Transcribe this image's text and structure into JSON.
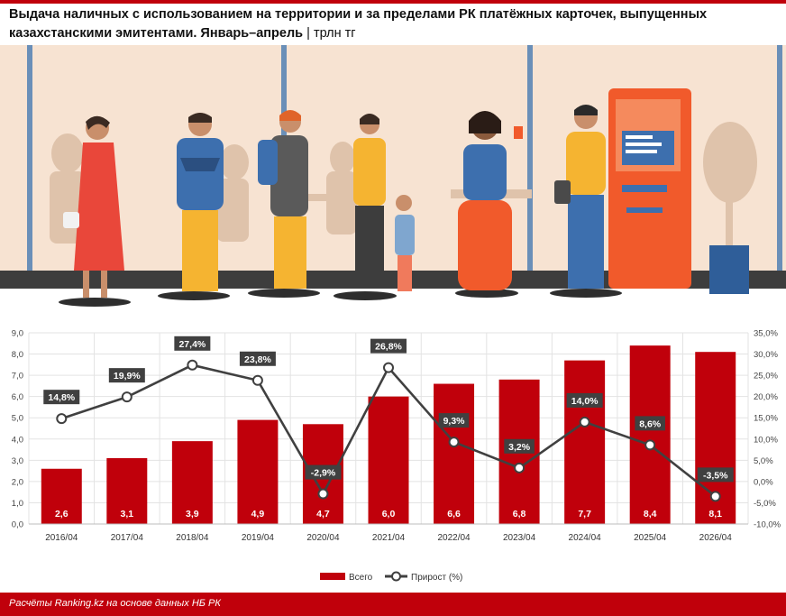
{
  "header": {
    "title": "Выдача наличных с использованием на территории и за пределами РК платёжных карточек, выпущенных казахстанскими эмитентами. Январь–апрель",
    "separator": "|",
    "unit": "трлн тг"
  },
  "illustration": {
    "icon": "people-queue-at-atm-illustration",
    "colors": {
      "background": "#f6e4d4",
      "floor": "#4a4a4a",
      "atm": "#f15a2b",
      "window": "#e9d2bd"
    }
  },
  "chart_data": {
    "type": "bar",
    "categories": [
      "2016/04",
      "2017/04",
      "2018/04",
      "2019/04",
      "2020/04",
      "2021/04",
      "2022/04",
      "2023/04",
      "2024/04",
      "2025/04",
      "2026/04"
    ],
    "series": [
      {
        "name": "Всего",
        "type": "bar",
        "axis": "left",
        "color": "#c0000b",
        "values": [
          2.6,
          3.1,
          3.9,
          4.9,
          4.7,
          6.0,
          6.6,
          6.8,
          7.7,
          8.4,
          8.1
        ],
        "labels": [
          "2,6",
          "3,1",
          "3,9",
          "4,9",
          "4,7",
          "6,0",
          "6,6",
          "6,8",
          "7,7",
          "8,4",
          "8,1"
        ]
      },
      {
        "name": "Прирост (%)",
        "type": "line",
        "axis": "right",
        "color": "#404040",
        "values": [
          14.8,
          19.9,
          27.4,
          23.8,
          -2.9,
          26.8,
          9.3,
          3.2,
          14.0,
          8.6,
          -3.5
        ],
        "labels": [
          "14,8%",
          "19,9%",
          "27,4%",
          "23,8%",
          "-2,9%",
          "26,8%",
          "9,3%",
          "3,2%",
          "14,0%",
          "8,6%",
          "-3,5%"
        ]
      }
    ],
    "y_left": {
      "min": 0,
      "max": 9,
      "step": 1,
      "ticks": [
        "0,0",
        "1,0",
        "2,0",
        "3,0",
        "4,0",
        "5,0",
        "6,0",
        "7,0",
        "8,0",
        "9,0"
      ]
    },
    "y_right": {
      "min": -10,
      "max": 35,
      "step": 5,
      "ticks": [
        "-10,0%",
        "-5,0%",
        "0,0%",
        "5,0%",
        "10,0%",
        "15,0%",
        "20,0%",
        "25,0%",
        "30,0%",
        "35,0%"
      ]
    },
    "grid": true,
    "legend_position": "bottom"
  },
  "footer": {
    "source": "Расчёты Ranking.kz на основе данных НБ РК"
  }
}
